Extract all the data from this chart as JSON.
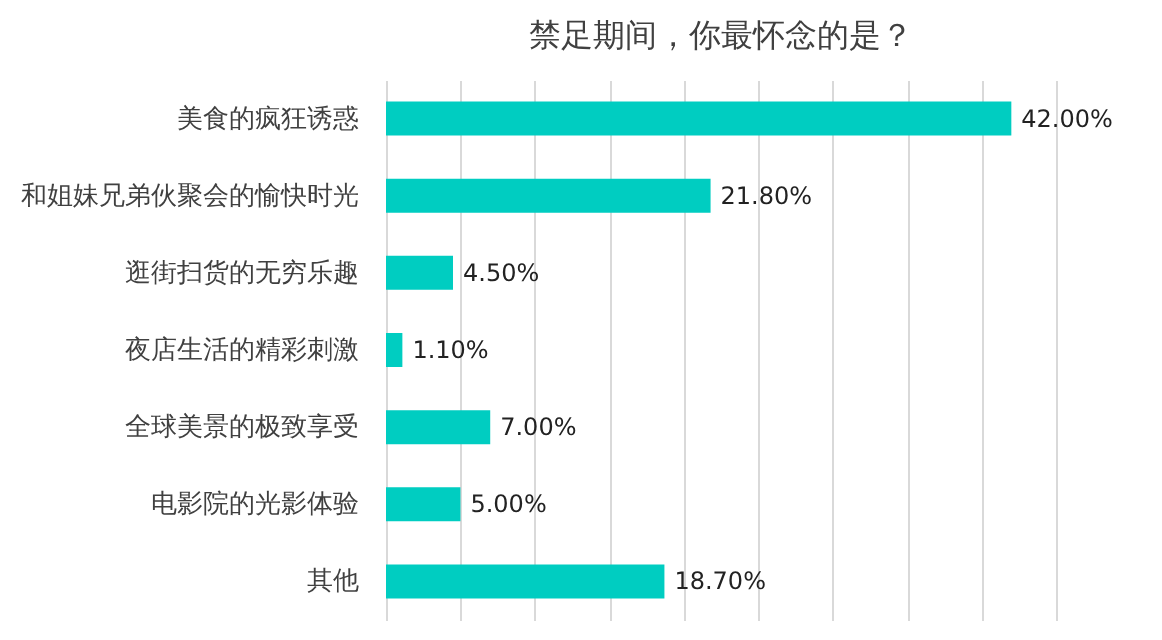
{
  "chart_data": {
    "type": "bar",
    "orientation": "horizontal",
    "title": "禁足期间，你最怀念的是？",
    "categories": [
      "美食的疯狂诱惑",
      "和姐妹兄弟伙聚会的愉快时光",
      "逛街扫货的无穷乐趣",
      "夜店生活的精彩刺激",
      "全球美景的极致享受",
      "电影院的光影体验",
      "其他"
    ],
    "values": [
      42.0,
      21.8,
      4.5,
      1.1,
      7.0,
      5.0,
      18.7
    ],
    "value_labels": [
      "42.00%",
      "21.80%",
      "4.50%",
      "1.10%",
      "7.00%",
      "5.00%",
      "18.70%"
    ],
    "color": "#00cdc1",
    "tick_labels": "y",
    "grid": "x"
  }
}
